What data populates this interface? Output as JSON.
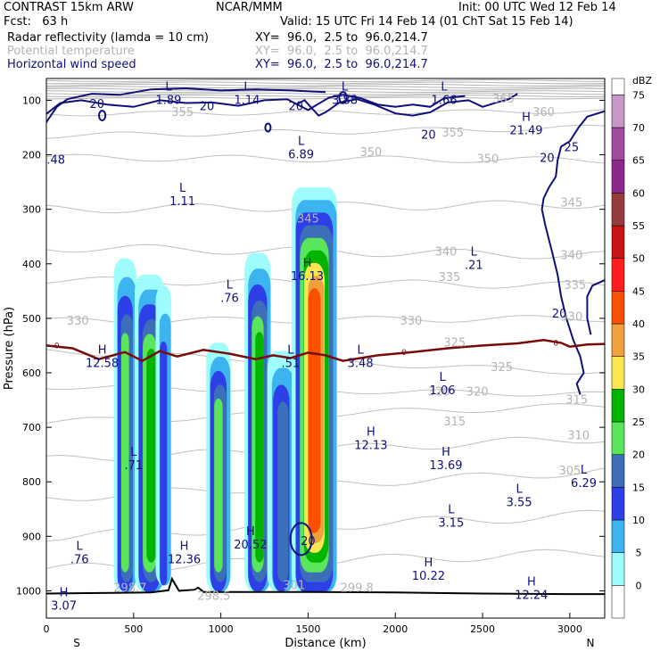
{
  "header": {
    "model": "CONTRAST 15km ARW",
    "center": "NCAR/MMM",
    "init": "Init: 00 UTC Wed 12 Feb 14",
    "fcst": "Fcst:   63 h",
    "valid": "Valid: 15 UTC Fri 14 Feb 14 (01 ChT Sat 15 Feb 14)",
    "fields": [
      {
        "name": "Radar reflectivity (lamda = 10 cm)",
        "xy": "XY=  96.0,  2.5 to  96.0,214.7",
        "color": "#000000"
      },
      {
        "name": "Potential temperature",
        "xy": "XY=  96.0,  2.5 to  96.0,214.7",
        "color": "#b4b4b4"
      },
      {
        "name": "Horizontal wind speed",
        "xy": "XY=  96.0,  2.5 to  96.0,214.7",
        "color": "#10107a"
      }
    ]
  },
  "chart_data": {
    "type": "cross-section",
    "xlabel": "Distance (km)",
    "ylabel": "Pressure (hPa)",
    "xlim": [
      0,
      3200
    ],
    "ylim": [
      1050,
      60
    ],
    "x_ticks": [
      0,
      500,
      1000,
      1500,
      2000,
      2500,
      3000
    ],
    "y_ticks": [
      100,
      200,
      300,
      400,
      500,
      600,
      700,
      800,
      900,
      1000
    ],
    "x_end_labels": {
      "left": "S",
      "right": "N"
    },
    "colorbar": {
      "unit": "dBZ",
      "levels": [
        0,
        5,
        10,
        15,
        20,
        25,
        30,
        35,
        40,
        45,
        50,
        55,
        60,
        65,
        70,
        75
      ],
      "colors": [
        "#ffffff",
        "#9ffcfc",
        "#3cb4f0",
        "#2d3fe6",
        "#3c6fb8",
        "#5ae65a",
        "#00b400",
        "#fae650",
        "#f0a03c",
        "#fa5000",
        "#ff1e1e",
        "#c81414",
        "#963c3c",
        "#8c288c",
        "#a04ba0",
        "#c896c8"
      ],
      "tick_labels": [
        "0",
        "5",
        "10",
        "15",
        "20",
        "25",
        "30",
        "35",
        "40",
        "45",
        "50",
        "55",
        "60",
        "65",
        "70",
        "75"
      ]
    },
    "terrain_pressure": [
      [
        0,
        1005
      ],
      [
        300,
        1004
      ],
      [
        600,
        1003
      ],
      [
        700,
        999
      ],
      [
        720,
        978
      ],
      [
        760,
        1000
      ],
      [
        850,
        998
      ],
      [
        870,
        994
      ],
      [
        900,
        1002
      ],
      [
        1100,
        1002
      ],
      [
        1500,
        1002
      ],
      [
        2000,
        1003
      ],
      [
        2500,
        1005
      ],
      [
        3000,
        1006
      ],
      [
        3200,
        1006
      ]
    ],
    "freezing_level_pressure": [
      [
        0,
        550
      ],
      [
        150,
        555
      ],
      [
        300,
        575
      ],
      [
        450,
        562
      ],
      [
        550,
        578
      ],
      [
        650,
        560
      ],
      [
        750,
        570
      ],
      [
        900,
        558
      ],
      [
        1050,
        565
      ],
      [
        1200,
        575
      ],
      [
        1300,
        568
      ],
      [
        1400,
        573
      ],
      [
        1500,
        563
      ],
      [
        1600,
        568
      ],
      [
        1700,
        578
      ],
      [
        1900,
        568
      ],
      [
        2100,
        562
      ],
      [
        2300,
        555
      ],
      [
        2500,
        550
      ],
      [
        2700,
        546
      ],
      [
        2850,
        540
      ],
      [
        2950,
        545
      ],
      [
        3000,
        552
      ],
      [
        3100,
        548
      ],
      [
        3200,
        547
      ]
    ],
    "freezing_level_label": "0",
    "theta_labels": [
      {
        "text": "355",
        "x": 780,
        "p": 122
      },
      {
        "text": "360",
        "x": 2850,
        "p": 122
      },
      {
        "text": "365",
        "x": 2620,
        "p": 98
      },
      {
        "text": "355",
        "x": 2330,
        "p": 160
      },
      {
        "text": "350",
        "x": 1860,
        "p": 196
      },
      {
        "text": "350",
        "x": 2530,
        "p": 208
      },
      {
        "text": "345",
        "x": 1500,
        "p": 318
      },
      {
        "text": "345",
        "x": 3010,
        "p": 288
      },
      {
        "text": "340",
        "x": 2290,
        "p": 378
      },
      {
        "text": "340",
        "x": 3010,
        "p": 385
      },
      {
        "text": "335",
        "x": 2310,
        "p": 425
      },
      {
        "text": "335",
        "x": 3030,
        "p": 440
      },
      {
        "text": "330",
        "x": 180,
        "p": 505
      },
      {
        "text": "330",
        "x": 2090,
        "p": 505
      },
      {
        "text": "330",
        "x": 3010,
        "p": 498
      },
      {
        "text": "325",
        "x": 2340,
        "p": 545
      },
      {
        "text": "325",
        "x": 2610,
        "p": 590
      },
      {
        "text": "320",
        "x": 2250,
        "p": 635
      },
      {
        "text": "320",
        "x": 2470,
        "p": 635
      },
      {
        "text": "315",
        "x": 3040,
        "p": 650
      },
      {
        "text": "315",
        "x": 2340,
        "p": 690
      },
      {
        "text": "310",
        "x": 3050,
        "p": 715
      },
      {
        "text": "305",
        "x": 3000,
        "p": 780
      },
      {
        "text": "299.8",
        "x": 1780,
        "p": 995
      },
      {
        "text": "298.5",
        "x": 960,
        "p": 1010
      },
      {
        "text": "298.7",
        "x": 480,
        "p": 995
      },
      {
        "text": "301",
        "x": 1420,
        "p": 990
      }
    ],
    "wind_labels": [
      {
        "text": "20",
        "x": 290,
        "p": 106
      },
      {
        "text": "20",
        "x": 920,
        "p": 110
      },
      {
        "text": "20",
        "x": 1430,
        "p": 110
      },
      {
        "text": "20",
        "x": 2190,
        "p": 162
      },
      {
        "text": "20",
        "x": 2870,
        "p": 205
      },
      {
        "text": "25",
        "x": 3010,
        "p": 185
      },
      {
        "text": "20",
        "x": 2940,
        "p": 490
      },
      {
        "text": "20",
        "x": 1500,
        "p": 908
      }
    ],
    "extrema": [
      {
        "type": "L",
        "value": "1.89",
        "x": 700,
        "p": 82
      },
      {
        "type": "L",
        "value": "1.14",
        "x": 1150,
        "p": 82
      },
      {
        "type": "L",
        "value": "3.88",
        "x": 1710,
        "p": 82
      },
      {
        "type": "L",
        "value": "1.66",
        "x": 2280,
        "p": 82
      },
      {
        "type": "H",
        "value": "21.49",
        "x": 2750,
        "p": 138
      },
      {
        "type": "L",
        "value": "6.89",
        "x": 1460,
        "p": 182
      },
      {
        "type": "",
        "value": ".48",
        "x": 55,
        "p": 192
      },
      {
        "type": "L",
        "value": "1.11",
        "x": 780,
        "p": 268
      },
      {
        "type": "L",
        "value": ".21",
        "x": 2450,
        "p": 385
      },
      {
        "type": "H",
        "value": "16.13",
        "x": 1495,
        "p": 405
      },
      {
        "type": "L",
        "value": ".76",
        "x": 1050,
        "p": 445
      },
      {
        "type": "H",
        "value": "12.58",
        "x": 320,
        "p": 565
      },
      {
        "type": "L",
        "value": ".51",
        "x": 1400,
        "p": 565
      },
      {
        "type": "L",
        "value": "3.48",
        "x": 1800,
        "p": 565
      },
      {
        "type": "L",
        "value": "1.06",
        "x": 2270,
        "p": 615
      },
      {
        "type": "H",
        "value": "12.13",
        "x": 1860,
        "p": 715
      },
      {
        "type": "L",
        "value": ".71",
        "x": 500,
        "p": 752
      },
      {
        "type": "H",
        "value": "13.69",
        "x": 2290,
        "p": 752
      },
      {
        "type": "L",
        "value": "6.29",
        "x": 3080,
        "p": 785
      },
      {
        "type": "L",
        "value": "3.55",
        "x": 2710,
        "p": 820
      },
      {
        "type": "L",
        "value": "3.15",
        "x": 2320,
        "p": 858
      },
      {
        "type": "H",
        "value": "20.52",
        "x": 1170,
        "p": 898
      },
      {
        "type": "L",
        "value": ".76",
        "x": 190,
        "p": 925
      },
      {
        "type": "H",
        "value": "12.36",
        "x": 790,
        "p": 925
      },
      {
        "type": "H",
        "value": "10.22",
        "x": 2190,
        "p": 955
      },
      {
        "type": "H",
        "value": "12.24",
        "x": 2780,
        "p": 990
      },
      {
        "type": "H",
        "value": "3.07",
        "x": 100,
        "p": 1010
      }
    ],
    "reflectivity_cells": [
      {
        "x0": 390,
        "x1": 520,
        "top": 390,
        "bottom": 1002,
        "cols": [
          "#9ffcfc",
          "#3cb4f0",
          "#2d3fe6",
          "#3c6fb8",
          "#5ae65a"
        ]
      },
      {
        "x0": 510,
        "x1": 680,
        "top": 420,
        "bottom": 1002,
        "cols": [
          "#9ffcfc",
          "#3cb4f0",
          "#2d3fe6",
          "#3c6fb8",
          "#5ae65a",
          "#00b400"
        ]
      },
      {
        "x0": 630,
        "x1": 720,
        "top": 440,
        "bottom": 990,
        "cols": [
          "#9ffcfc",
          "#3cb4f0",
          "#2d3fe6"
        ]
      },
      {
        "x0": 920,
        "x1": 1060,
        "top": 545,
        "bottom": 1002,
        "cols": [
          "#9ffcfc",
          "#3cb4f0",
          "#2d3fe6",
          "#3c6fb8",
          "#5ae65a"
        ]
      },
      {
        "x0": 1140,
        "x1": 1290,
        "top": 380,
        "bottom": 1002,
        "cols": [
          "#9ffcfc",
          "#3cb4f0",
          "#2d3fe6",
          "#3c6fb8",
          "#5ae65a",
          "#00b400"
        ]
      },
      {
        "x0": 1270,
        "x1": 1430,
        "top": 560,
        "bottom": 1002,
        "cols": [
          "#9ffcfc",
          "#3cb4f0",
          "#2d3fe6",
          "#3c6fb8"
        ]
      },
      {
        "x0": 1410,
        "x1": 1670,
        "top": 260,
        "bottom": 1002,
        "cols": [
          "#9ffcfc",
          "#3cb4f0",
          "#2d3fe6",
          "#3c6fb8",
          "#5ae65a",
          "#00b400",
          "#fae650",
          "#f0a03c",
          "#fa5000"
        ]
      }
    ]
  }
}
